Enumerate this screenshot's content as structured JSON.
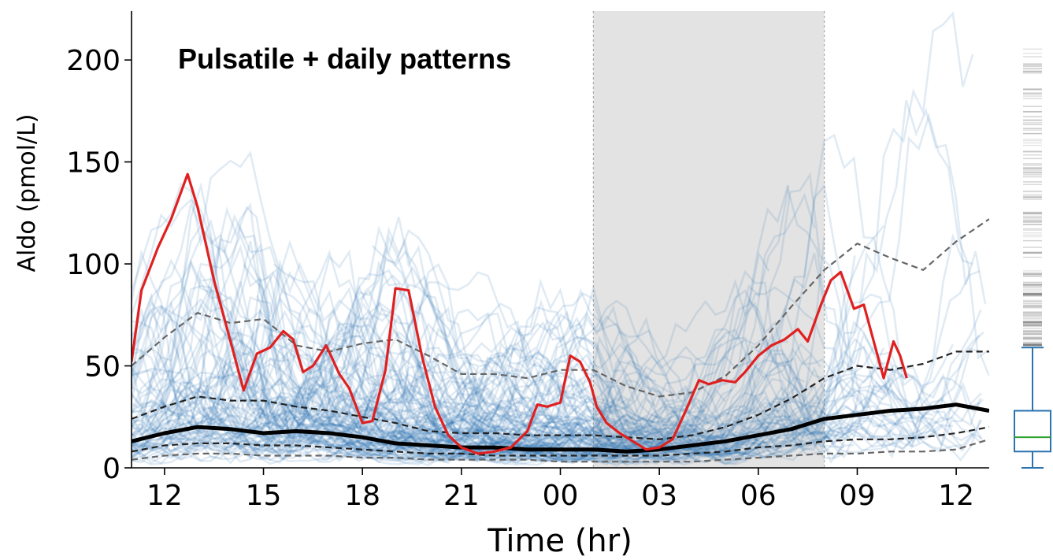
{
  "chart_data": {
    "type": "line",
    "title": "Pulsatile + daily patterns",
    "xlabel": "Time (hr)",
    "ylabel": "Aldo (pmol/L)",
    "xlim": [
      11,
      37
    ],
    "ylim": [
      0,
      224
    ],
    "x_ticks": [
      {
        "x": 12,
        "label": "12"
      },
      {
        "x": 15,
        "label": "15"
      },
      {
        "x": 18,
        "label": "18"
      },
      {
        "x": 21,
        "label": "21"
      },
      {
        "x": 24,
        "label": "00"
      },
      {
        "x": 27,
        "label": "03"
      },
      {
        "x": 30,
        "label": "06"
      },
      {
        "x": 33,
        "label": "09"
      },
      {
        "x": 36,
        "label": "12"
      }
    ],
    "y_ticks": [
      {
        "y": 0,
        "label": "0"
      },
      {
        "y": 50,
        "label": "50"
      },
      {
        "y": 100,
        "label": "100"
      },
      {
        "y": 150,
        "label": "150"
      },
      {
        "y": 200,
        "label": "200"
      }
    ],
    "shaded_interval": {
      "x0": 25,
      "x1": 32,
      "color": "#e3e3e3"
    },
    "grid": false,
    "series": [
      {
        "role": "median",
        "style": "solid",
        "color": "#000000",
        "x": [
          11,
          12,
          13,
          14,
          15,
          16,
          17,
          18,
          19,
          20,
          21,
          22,
          23,
          24,
          25,
          26,
          27,
          28,
          29,
          30,
          31,
          32,
          33,
          34,
          35,
          36,
          37
        ],
        "y": [
          13,
          17,
          20,
          19,
          17,
          18,
          17,
          15,
          12,
          11,
          10,
          10,
          9,
          9,
          9,
          8,
          9,
          11,
          13,
          16,
          19,
          24,
          26,
          28,
          29,
          31,
          28
        ]
      },
      {
        "role": "quantile-upper-inner",
        "style": "dashed",
        "color": "#222222",
        "x": [
          11,
          12,
          13,
          14,
          15,
          16,
          17,
          18,
          19,
          20,
          21,
          22,
          23,
          24,
          25,
          26,
          27,
          28,
          29,
          30,
          31,
          32,
          33,
          34,
          35,
          36,
          37
        ],
        "y": [
          24,
          30,
          35,
          33,
          33,
          30,
          28,
          25,
          22,
          18,
          17,
          17,
          16,
          16,
          16,
          15,
          14,
          16,
          20,
          26,
          34,
          44,
          50,
          48,
          51,
          57,
          57
        ]
      },
      {
        "role": "quantile-upper-outer",
        "style": "dashed",
        "color": "#666666",
        "x": [
          11,
          12,
          13,
          14,
          15,
          16,
          17,
          18,
          19,
          20,
          21,
          22,
          23,
          24,
          25,
          26,
          27,
          28,
          29,
          30,
          31,
          32,
          33,
          34,
          35,
          36,
          37
        ],
        "y": [
          50,
          64,
          76,
          71,
          73,
          60,
          57,
          61,
          63,
          55,
          46,
          46,
          44,
          48,
          48,
          40,
          35,
          37,
          45,
          60,
          79,
          97,
          110,
          103,
          97,
          111,
          122
        ]
      },
      {
        "role": "quantile-lower-inner",
        "style": "dashed",
        "color": "#222222",
        "x": [
          11,
          12,
          13,
          14,
          15,
          16,
          17,
          18,
          19,
          20,
          21,
          22,
          23,
          24,
          25,
          26,
          27,
          28,
          29,
          30,
          31,
          32,
          33,
          34,
          35,
          36,
          37
        ],
        "y": [
          8,
          11,
          12,
          12,
          11,
          11,
          10,
          9,
          8,
          7,
          7,
          6,
          6,
          6,
          6,
          6,
          6,
          7,
          8,
          10,
          11,
          13,
          14,
          14,
          15,
          17,
          20
        ]
      },
      {
        "role": "quantile-lower-outer",
        "style": "dashed",
        "color": "#666666",
        "x": [
          11,
          12,
          13,
          14,
          15,
          16,
          17,
          18,
          19,
          20,
          21,
          22,
          23,
          24,
          25,
          26,
          27,
          28,
          29,
          30,
          31,
          32,
          33,
          34,
          35,
          36,
          37
        ],
        "y": [
          4,
          6,
          7,
          7,
          6,
          6,
          6,
          5,
          5,
          4,
          4,
          4,
          4,
          3,
          3,
          3,
          3,
          3,
          4,
          5,
          6,
          7,
          7,
          8,
          8,
          9,
          14
        ]
      },
      {
        "role": "example-individual",
        "style": "solid",
        "color": "#e02020",
        "x": [
          11,
          11.3,
          11.8,
          12.2,
          12.7,
          13,
          13.5,
          14,
          14.4,
          14.8,
          15.2,
          15.6,
          15.9,
          16.2,
          16.5,
          16.9,
          17.3,
          17.6,
          18,
          18.3,
          18.7,
          19,
          19.4,
          19.8,
          20.2,
          20.6,
          21,
          21.5,
          22,
          22.5,
          23,
          23.3,
          23.6,
          24,
          24.3,
          24.6,
          24.9,
          25.1,
          25.4,
          25.8,
          26.2,
          26.6,
          27,
          27.4,
          27.8,
          28.2,
          28.5,
          28.9,
          29.3,
          29.6,
          30,
          30.4,
          30.8,
          31.2,
          31.5,
          31.9,
          32.2,
          32.5,
          32.9,
          33.2,
          33.5,
          33.8,
          34.1,
          34.3,
          34.5
        ],
        "y": [
          52,
          87,
          108,
          122,
          144,
          128,
          92,
          62,
          38,
          56,
          59,
          67,
          63,
          47,
          50,
          60,
          46,
          39,
          22,
          23,
          48,
          88,
          87,
          55,
          30,
          16,
          10,
          7,
          8,
          10,
          18,
          31,
          30,
          32,
          55,
          52,
          42,
          30,
          22,
          17,
          13,
          9,
          10,
          14,
          28,
          43,
          41,
          43,
          42,
          47,
          55,
          60,
          63,
          68,
          62,
          80,
          92,
          96,
          78,
          80,
          62,
          44,
          62,
          55,
          44
        ]
      }
    ],
    "individual_traces_color": "#2a72b0",
    "marginal_boxplot": {
      "whisker_low": 0,
      "q1": 8,
      "median": 15,
      "q3": 28,
      "whisker_high": 59,
      "box_color": "#2a72b0",
      "median_color": "#2ca02c"
    }
  }
}
